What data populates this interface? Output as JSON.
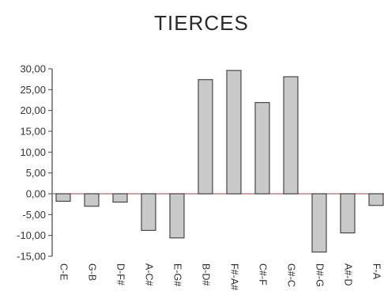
{
  "chart_data": {
    "type": "bar",
    "title": "TIERCES",
    "xlabel": "",
    "ylabel": "",
    "ylim": [
      -15,
      30
    ],
    "yticks": [
      "30,00",
      "25,00",
      "20,00",
      "15,00",
      "10,00",
      "5,00",
      "0,00",
      "-5,00",
      "-10,00",
      "-15,00"
    ],
    "ytick_values": [
      30,
      25,
      20,
      15,
      10,
      5,
      0,
      -5,
      -10,
      -15
    ],
    "categories": [
      "C-E",
      "G-B",
      "D-F#",
      "A-C#",
      "E-G#",
      "B-D#",
      "F#-A#",
      "C#-F",
      "G#-C",
      "D#-G",
      "A#-D",
      "F-A"
    ],
    "values": [
      -1.8,
      -3.0,
      -2.0,
      -8.8,
      -10.6,
      27.4,
      29.6,
      21.9,
      28.1,
      -14.0,
      -9.4,
      -2.8
    ],
    "bar_color": "#c9c9c9",
    "zero_line_color": "#b06a6a",
    "grid": false,
    "legend": "none"
  }
}
